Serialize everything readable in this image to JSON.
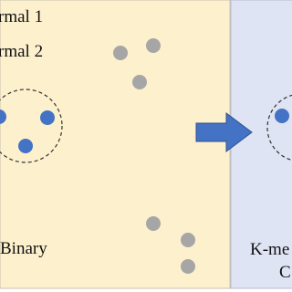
{
  "left_panel": {
    "legend": [
      "rmal 1",
      "rmal 2"
    ],
    "label": "Binary"
  },
  "right_panel": {
    "label_lines": [
      "K-me",
      "C"
    ]
  }
}
